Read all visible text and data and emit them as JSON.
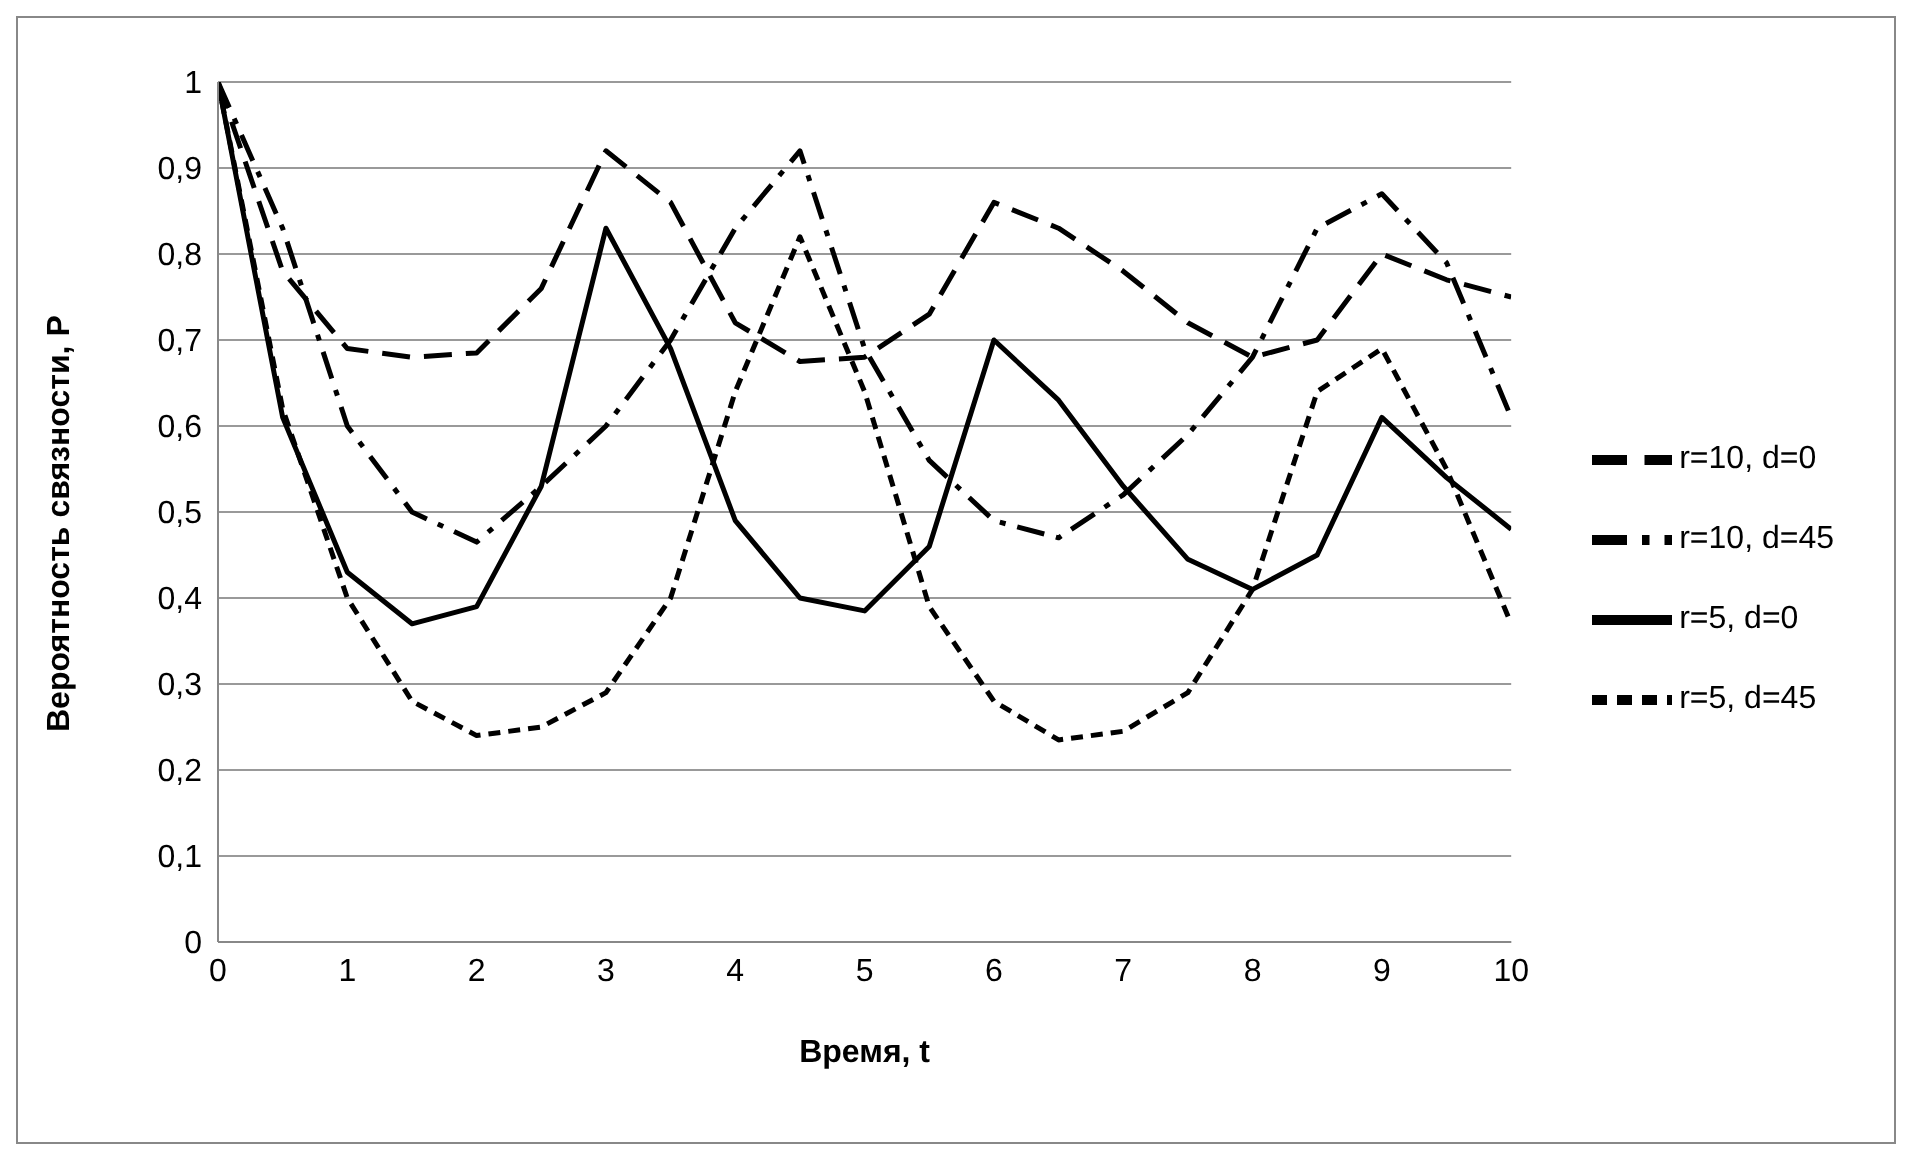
{
  "chart_data": {
    "type": "line",
    "xlabel": "Время, t",
    "ylabel": "Вероятность связности, P",
    "x": [
      0,
      0.5,
      1,
      1.5,
      2,
      2.5,
      3,
      3.5,
      4,
      4.5,
      5,
      5.5,
      6,
      6.5,
      7,
      7.5,
      8,
      8.5,
      9,
      9.5,
      10
    ],
    "series": [
      {
        "name": "r=5, d=0",
        "color": "#000000",
        "line_style": "solid",
        "values": [
          1,
          0.61,
          0.43,
          0.37,
          0.39,
          0.53,
          0.83,
          0.69,
          0.49,
          0.4,
          0.385,
          0.46,
          0.7,
          0.63,
          0.53,
          0.445,
          0.41,
          0.45,
          0.61,
          0.54,
          0.48
        ]
      },
      {
        "name": "r=5, d=45",
        "color": "#000000",
        "line_style": "dotted",
        "values": [
          1,
          0.62,
          0.4,
          0.28,
          0.24,
          0.25,
          0.29,
          0.4,
          0.64,
          0.82,
          0.64,
          0.39,
          0.28,
          0.235,
          0.245,
          0.29,
          0.41,
          0.64,
          0.69,
          0.55,
          0.37
        ]
      },
      {
        "name": "r=10, d=0",
        "color": "#000000",
        "line_style": "dashed",
        "values": [
          1,
          0.78,
          0.69,
          0.68,
          0.685,
          0.76,
          0.92,
          0.86,
          0.72,
          0.675,
          0.68,
          0.73,
          0.86,
          0.83,
          0.78,
          0.72,
          0.68,
          0.7,
          0.8,
          0.77,
          0.75
        ]
      },
      {
        "name": "r=10, d=45",
        "color": "#000000",
        "line_style": "dashdot",
        "values": [
          1,
          0.83,
          0.6,
          0.5,
          0.465,
          0.53,
          0.6,
          0.7,
          0.83,
          0.92,
          0.69,
          0.56,
          0.49,
          0.47,
          0.52,
          0.59,
          0.68,
          0.83,
          0.87,
          0.79,
          0.61
        ]
      }
    ],
    "xlim": [
      0,
      10
    ],
    "xticks": [
      0,
      1,
      2,
      3,
      4,
      5,
      6,
      7,
      8,
      9,
      10
    ],
    "ylim": [
      0,
      1
    ],
    "yticks": [
      0,
      {
        "value": 0.1,
        "label": "0,1"
      },
      {
        "value": 0.2,
        "label": "0,2"
      },
      {
        "value": 0.3,
        "label": "0,3"
      },
      {
        "value": 0.4,
        "label": "0,4"
      },
      {
        "value": 0.5,
        "label": "0,5"
      },
      {
        "value": 0.6,
        "label": "0,6"
      },
      {
        "value": 0.7,
        "label": "0,7"
      },
      {
        "value": 0.8,
        "label": "0,8"
      },
      {
        "value": 0.9,
        "label": "0,9"
      },
      1
    ],
    "grid": "y",
    "legend": "right",
    "marker": "none"
  }
}
